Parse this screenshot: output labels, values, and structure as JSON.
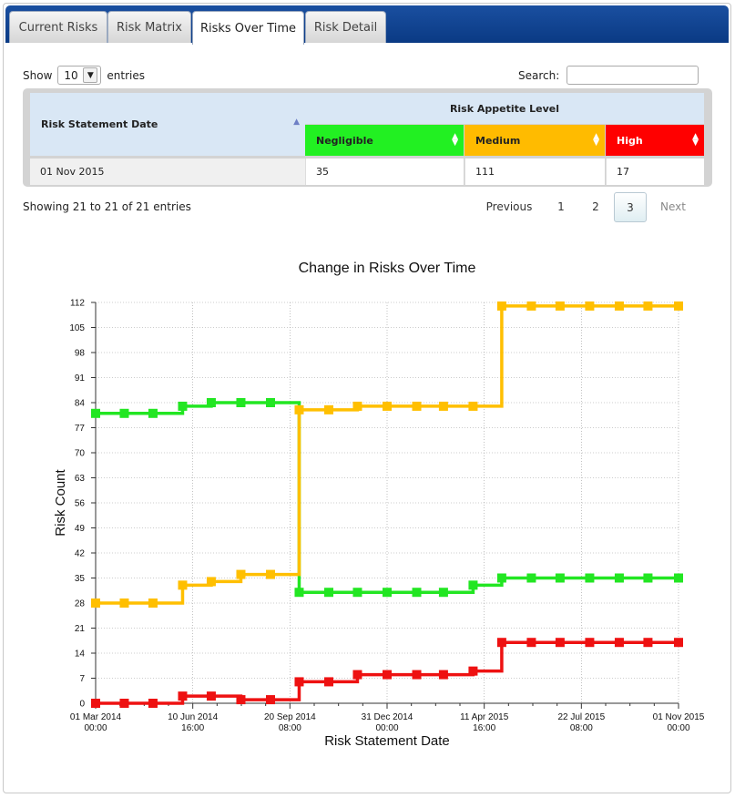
{
  "tabs": [
    {
      "label": "Current Risks",
      "active": false
    },
    {
      "label": "Risk Matrix",
      "active": false
    },
    {
      "label": "Risks Over Time",
      "active": true
    },
    {
      "label": "Risk Detail",
      "active": false
    }
  ],
  "table_controls": {
    "show_label": "Show",
    "entries_value": "10",
    "entries_label": "entries",
    "search_label": "Search:",
    "search_value": ""
  },
  "table": {
    "col_date": "Risk Statement Date",
    "group_header": "Risk Appetite Level",
    "col_negligible": "Negligible",
    "col_medium": "Medium",
    "col_high": "High",
    "row": {
      "date": "01 Nov 2015",
      "negligible": "35",
      "medium": "111",
      "high": "17"
    },
    "colors": {
      "negligible": "#1ff01f",
      "medium": "#ffbb00",
      "high": "#ff0000",
      "header": "#d9e7f5"
    }
  },
  "pagination": {
    "info": "Showing 21 to 21 of 21 entries",
    "previous": "Previous",
    "pages": [
      "1",
      "2",
      "3"
    ],
    "current": "3",
    "next": "Next"
  },
  "chart_data": {
    "type": "line",
    "title": "Change in Risks Over Time",
    "xlabel": "Risk Statement Date",
    "ylabel": "Risk Count",
    "ylim": [
      0,
      112
    ],
    "yticks": [
      0,
      7,
      14,
      21,
      28,
      35,
      42,
      49,
      56,
      63,
      70,
      77,
      84,
      91,
      98,
      105,
      112
    ],
    "xtick_labels": [
      [
        "01 Mar 2014",
        "00:00"
      ],
      [
        "10 Jun 2014",
        "16:00"
      ],
      [
        "20 Sep 2014",
        "08:00"
      ],
      [
        "31 Dec 2014",
        "00:00"
      ],
      [
        "11 Apr 2015",
        "16:00"
      ],
      [
        "22 Jul 2015",
        "08:00"
      ],
      [
        "01 Nov 2015",
        "00:00"
      ]
    ],
    "grid": true,
    "step": true,
    "x": [
      "2014-03-01",
      "2014-03-31",
      "2014-04-30",
      "2014-05-31",
      "2014-06-30",
      "2014-07-31",
      "2014-08-31",
      "2014-09-30",
      "2014-10-31",
      "2014-11-30",
      "2014-12-31",
      "2015-01-31",
      "2015-02-28",
      "2015-03-31",
      "2015-04-30",
      "2015-05-31",
      "2015-06-30",
      "2015-07-31",
      "2015-08-31",
      "2015-09-30",
      "2015-11-01"
    ],
    "series": [
      {
        "color": "#22e622",
        "values": [
          81,
          81,
          81,
          83,
          84,
          84,
          84,
          31,
          31,
          31,
          31,
          31,
          31,
          33,
          35,
          35,
          35,
          35,
          35,
          35,
          35
        ]
      },
      {
        "color": "#ffbf00",
        "values": [
          28,
          28,
          28,
          33,
          34,
          36,
          36,
          82,
          82,
          83,
          83,
          83,
          83,
          83,
          111,
          111,
          111,
          111,
          111,
          111,
          111
        ]
      },
      {
        "color": "#ee1111",
        "values": [
          0,
          0,
          0,
          2,
          2,
          1,
          1,
          6,
          6,
          8,
          8,
          8,
          8,
          9,
          17,
          17,
          17,
          17,
          17,
          17,
          17
        ]
      }
    ]
  }
}
